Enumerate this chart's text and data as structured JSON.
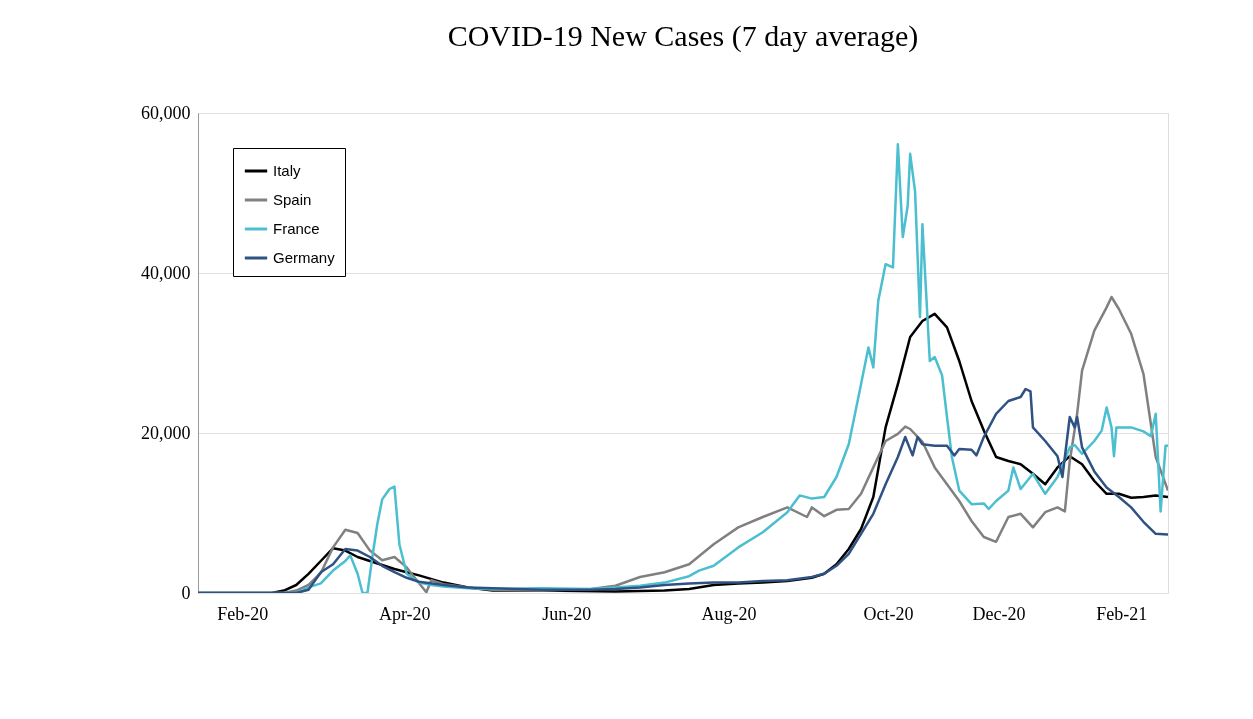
{
  "chart_data": {
    "type": "line",
    "title": "COVID-19 New Cases (7 day average)",
    "xlim": [
      "2020-01-22",
      "2021-02-20"
    ],
    "xticks": [
      {
        "value": "2020-02-09",
        "label": "Feb-20"
      },
      {
        "value": "2020-04-15",
        "label": "Apr-20"
      },
      {
        "value": "2020-06-20",
        "label": "Jun-20"
      },
      {
        "value": "2020-08-25",
        "label": "Aug-20"
      },
      {
        "value": "2020-10-29",
        "label": "Oct-20"
      },
      {
        "value": "2020-12-13",
        "label": "Dec-20"
      },
      {
        "value": "2021-02-01",
        "label": "Feb-21"
      }
    ],
    "ylim": [
      0,
      60000
    ],
    "yticks": [
      {
        "value": 0,
        "label": "0"
      },
      {
        "value": 20000,
        "label": "20,000"
      },
      {
        "value": 40000,
        "label": "40,000"
      },
      {
        "value": 60000,
        "label": "60,000"
      }
    ],
    "grid": "y",
    "legend": "top left",
    "marker": "none",
    "line_style": "solid",
    "series": [
      {
        "name": "Italy",
        "color": "#000000",
        "x": [
          "2020-01-22",
          "2020-02-21",
          "2020-02-26",
          "2020-03-02",
          "2020-03-07",
          "2020-03-12",
          "2020-03-17",
          "2020-03-22",
          "2020-03-27",
          "2020-04-01",
          "2020-04-06",
          "2020-04-11",
          "2020-04-16",
          "2020-04-21",
          "2020-05-01",
          "2020-05-11",
          "2020-05-21",
          "2020-06-10",
          "2020-07-10",
          "2020-07-30",
          "2020-08-09",
          "2020-08-19",
          "2020-08-29",
          "2020-09-08",
          "2020-09-18",
          "2020-09-28",
          "2020-10-03",
          "2020-10-08",
          "2020-10-13",
          "2020-10-18",
          "2020-10-23",
          "2020-10-28",
          "2020-11-02",
          "2020-11-07",
          "2020-11-12",
          "2020-11-17",
          "2020-11-22",
          "2020-11-27",
          "2020-12-02",
          "2020-12-07",
          "2020-12-12",
          "2020-12-17",
          "2020-12-22",
          "2020-12-27",
          "2021-01-01",
          "2021-01-06",
          "2021-01-11",
          "2021-01-16",
          "2021-01-21",
          "2021-01-26",
          "2021-01-31",
          "2021-02-05",
          "2021-02-10",
          "2021-02-15",
          "2021-02-20"
        ],
        "values": [
          0,
          0,
          300,
          1000,
          2400,
          4000,
          5600,
          5300,
          4500,
          4000,
          3500,
          3000,
          2600,
          2200,
          1300,
          700,
          300,
          300,
          200,
          300,
          500,
          1000,
          1200,
          1300,
          1500,
          1900,
          2400,
          3600,
          5500,
          8000,
          12000,
          20700,
          26100,
          32000,
          34000,
          34900,
          33200,
          29000,
          24000,
          20300,
          17000,
          16500,
          16100,
          14900,
          13600,
          15700,
          17100,
          16100,
          14000,
          12400,
          12400,
          11900,
          12000,
          12200,
          12000
        ]
      },
      {
        "name": "Spain",
        "color": "#808080",
        "x": [
          "2020-01-22",
          "2020-02-26",
          "2020-03-02",
          "2020-03-07",
          "2020-03-12",
          "2020-03-17",
          "2020-03-22",
          "2020-03-27",
          "2020-04-01",
          "2020-04-06",
          "2020-04-11",
          "2020-04-16",
          "2020-04-19",
          "2020-04-24",
          "2020-04-26",
          "2020-05-01",
          "2020-05-11",
          "2020-05-21",
          "2020-06-10",
          "2020-06-30",
          "2020-07-10",
          "2020-07-20",
          "2020-07-30",
          "2020-08-09",
          "2020-08-19",
          "2020-08-29",
          "2020-09-08",
          "2020-09-18",
          "2020-09-26",
          "2020-09-28",
          "2020-10-03",
          "2020-10-08",
          "2020-10-13",
          "2020-10-18",
          "2020-10-23",
          "2020-10-28",
          "2020-11-02",
          "2020-11-05",
          "2020-11-07",
          "2020-11-12",
          "2020-11-17",
          "2020-11-22",
          "2020-11-27",
          "2020-12-02",
          "2020-12-07",
          "2020-12-12",
          "2020-12-17",
          "2020-12-22",
          "2020-12-27",
          "2021-01-01",
          "2021-01-06",
          "2021-01-09",
          "2021-01-11",
          "2021-01-14",
          "2021-01-16",
          "2021-01-21",
          "2021-01-26",
          "2021-01-28",
          "2021-01-31",
          "2021-02-05",
          "2021-02-10",
          "2021-02-15",
          "2021-02-20"
        ],
        "values": [
          0,
          0,
          300,
          1000,
          2500,
          5700,
          7900,
          7500,
          5300,
          4100,
          4500,
          3200,
          2000,
          100,
          1600,
          1100,
          700,
          400,
          300,
          500,
          900,
          2000,
          2600,
          3600,
          6100,
          8200,
          9500,
          10700,
          9500,
          10700,
          9600,
          10400,
          10500,
          12400,
          15700,
          19000,
          19900,
          20800,
          20500,
          18900,
          15700,
          13600,
          11500,
          9000,
          7000,
          6400,
          9500,
          9900,
          8200,
          10100,
          10700,
          10200,
          16500,
          22400,
          27800,
          32800,
          35700,
          37000,
          35500,
          32400,
          27400,
          17000,
          12800
        ]
      },
      {
        "name": "France",
        "color": "#4bbecf",
        "x": [
          "2020-01-22",
          "2020-03-02",
          "2020-03-07",
          "2020-03-12",
          "2020-03-17",
          "2020-03-22",
          "2020-03-24",
          "2020-03-27",
          "2020-03-29",
          "2020-03-31",
          "2020-04-02",
          "2020-04-04",
          "2020-04-06",
          "2020-04-09",
          "2020-04-11",
          "2020-04-13",
          "2020-04-16",
          "2020-04-21",
          "2020-04-26",
          "2020-05-01",
          "2020-05-11",
          "2020-05-21",
          "2020-06-10",
          "2020-06-30",
          "2020-07-10",
          "2020-07-20",
          "2020-07-30",
          "2020-08-09",
          "2020-08-13",
          "2020-08-19",
          "2020-08-29",
          "2020-09-08",
          "2020-09-18",
          "2020-09-23",
          "2020-09-28",
          "2020-10-03",
          "2020-10-08",
          "2020-10-13",
          "2020-10-18",
          "2020-10-21",
          "2020-10-23",
          "2020-10-25",
          "2020-10-28",
          "2020-10-31",
          "2020-11-02",
          "2020-11-04",
          "2020-11-06",
          "2020-11-07",
          "2020-11-09",
          "2020-11-11",
          "2020-11-12",
          "2020-11-15",
          "2020-11-17",
          "2020-11-20",
          "2020-11-22",
          "2020-11-24",
          "2020-11-27",
          "2020-12-02",
          "2020-12-07",
          "2020-12-09",
          "2020-12-12",
          "2020-12-17",
          "2020-12-19",
          "2020-12-22",
          "2020-12-27",
          "2021-01-01",
          "2021-01-06",
          "2021-01-11",
          "2021-01-13",
          "2021-01-16",
          "2021-01-21",
          "2021-01-24",
          "2021-01-26",
          "2021-01-28",
          "2021-01-29",
          "2021-01-30",
          "2021-02-05",
          "2021-02-10",
          "2021-02-13",
          "2021-02-15",
          "2021-02-17",
          "2021-02-19",
          "2021-02-20"
        ],
        "values": [
          0,
          0,
          700,
          1200,
          2800,
          4000,
          4700,
          2400,
          0,
          0,
          4500,
          8600,
          11700,
          13000,
          13300,
          6100,
          2400,
          1300,
          1000,
          800,
          600,
          500,
          600,
          500,
          700,
          900,
          1300,
          2100,
          2800,
          3400,
          5700,
          7600,
          10100,
          12200,
          11800,
          12000,
          14500,
          18600,
          26100,
          30700,
          28200,
          36500,
          41100,
          40700,
          56100,
          44500,
          48400,
          54900,
          50200,
          34500,
          46100,
          29000,
          29500,
          27200,
          22000,
          17000,
          12800,
          11100,
          11200,
          10500,
          11500,
          12800,
          15700,
          13000,
          14900,
          12400,
          14500,
          18200,
          18500,
          17400,
          19000,
          20300,
          23200,
          20700,
          17100,
          20700,
          20700,
          20200,
          19600,
          22400,
          10200,
          18400,
          18400
        ]
      },
      {
        "name": "Germany",
        "color": "#2f5283",
        "x": [
          "2020-01-22",
          "2020-03-02",
          "2020-03-07",
          "2020-03-12",
          "2020-03-17",
          "2020-03-22",
          "2020-03-27",
          "2020-04-01",
          "2020-04-06",
          "2020-04-11",
          "2020-04-16",
          "2020-04-21",
          "2020-05-01",
          "2020-05-11",
          "2020-05-21",
          "2020-06-10",
          "2020-06-30",
          "2020-07-10",
          "2020-07-20",
          "2020-07-30",
          "2020-08-09",
          "2020-08-19",
          "2020-08-29",
          "2020-09-08",
          "2020-09-18",
          "2020-09-28",
          "2020-10-03",
          "2020-10-08",
          "2020-10-13",
          "2020-10-18",
          "2020-10-23",
          "2020-10-28",
          "2020-11-02",
          "2020-11-05",
          "2020-11-08",
          "2020-11-10",
          "2020-11-12",
          "2020-11-17",
          "2020-11-22",
          "2020-11-25",
          "2020-11-27",
          "2020-12-02",
          "2020-12-04",
          "2020-12-07",
          "2020-12-12",
          "2020-12-17",
          "2020-12-22",
          "2020-12-24",
          "2020-12-26",
          "2020-12-27",
          "2021-01-01",
          "2021-01-06",
          "2021-01-08",
          "2021-01-11",
          "2021-01-13",
          "2021-01-14",
          "2021-01-16",
          "2021-01-21",
          "2021-01-26",
          "2021-01-31",
          "2021-02-05",
          "2021-02-10",
          "2021-02-15",
          "2021-02-20"
        ],
        "values": [
          0,
          0,
          400,
          2600,
          3600,
          5500,
          5300,
          4500,
          3400,
          2600,
          1900,
          1400,
          1000,
          700,
          600,
          400,
          400,
          500,
          700,
          1000,
          1200,
          1300,
          1300,
          1500,
          1600,
          2000,
          2400,
          3400,
          4900,
          7400,
          9900,
          13600,
          17000,
          19500,
          17200,
          19500,
          18600,
          18400,
          18400,
          17200,
          18000,
          17900,
          17200,
          19500,
          22400,
          24000,
          24500,
          25500,
          25200,
          20700,
          19000,
          17100,
          14500,
          22000,
          20700,
          22000,
          18200,
          15200,
          13200,
          12000,
          10700,
          8900,
          7400,
          7300
        ]
      }
    ]
  }
}
